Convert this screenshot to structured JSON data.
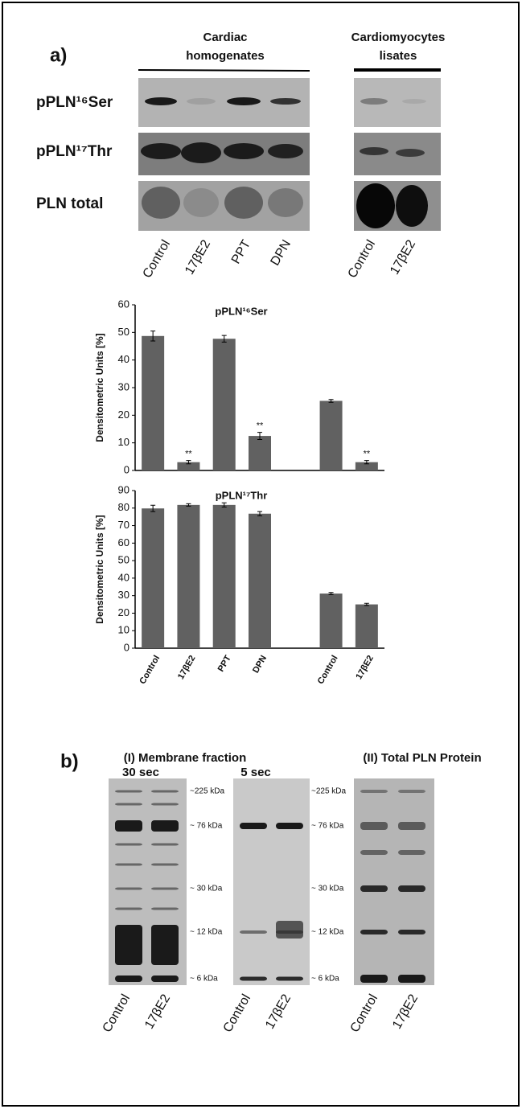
{
  "panel_a": {
    "label": "a)",
    "groups": [
      [
        "Cardiac",
        "homogenates"
      ],
      [
        "Cardiomyocytes",
        "lisates"
      ]
    ],
    "blot_rows": [
      "pPLN¹⁶Ser",
      "pPLN¹⁷Thr",
      "PLN total"
    ],
    "lanes": [
      "Control",
      "17βE2",
      "PPT",
      "DPN",
      "Control",
      "17βE2"
    ]
  },
  "chart_data": [
    {
      "type": "bar",
      "title": "pPLN¹⁶Ser",
      "y_label": "Densitometric Units [%]",
      "color": "#616161",
      "values": [
        48.7,
        3,
        47.7,
        12.5,
        null,
        25.2,
        3
      ],
      "errors": [
        1.8,
        0.6,
        1.2,
        1.3,
        null,
        0.5,
        0.6
      ],
      "significance": [
        null,
        "**",
        null,
        "**",
        null,
        null,
        "**"
      ],
      "ylim": [
        0,
        60
      ],
      "yticks": [
        0,
        10,
        20,
        30,
        40,
        50,
        60
      ]
    },
    {
      "type": "bar",
      "title": "pPLN¹⁷Thr",
      "y_label": "Densitometric Units [%]",
      "color": "#616161",
      "categories": [
        "Control",
        "17βE2",
        "PPT",
        "DPN",
        null,
        "Control",
        "17βE2"
      ],
      "values": [
        79.8,
        81.8,
        81.8,
        76.8,
        null,
        31.2,
        25
      ],
      "errors": [
        1.8,
        0.7,
        1.2,
        1.2,
        null,
        0.6,
        0.6
      ],
      "ylim": [
        0,
        90
      ],
      "yticks": [
        0,
        10,
        20,
        30,
        40,
        50,
        60,
        70,
        80,
        90
      ]
    }
  ],
  "panel_b": {
    "label": "b)",
    "sections": [
      "(I) Membrane fraction",
      "(II) Total PLN Protein"
    ],
    "exposures": [
      "30 sec",
      "5 sec"
    ],
    "markers": [
      "~225 kDa",
      "~ 76 kDa",
      "~ 30 kDa",
      "~ 12 kDa",
      "~ 6 kDa"
    ],
    "lanes": [
      "Control",
      "17βE2"
    ]
  }
}
